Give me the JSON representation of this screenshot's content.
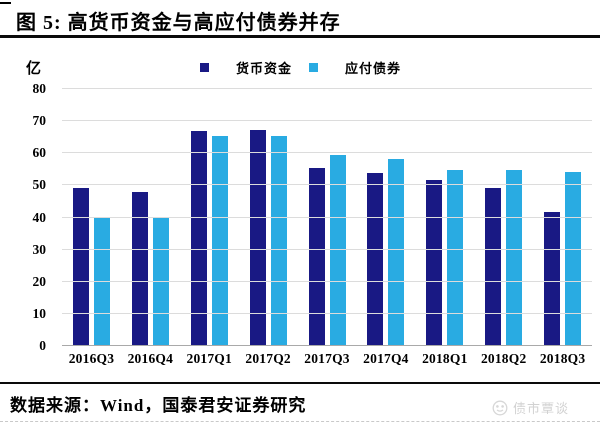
{
  "header": {
    "title": "图 5: 高货币资金与高应付债券并存"
  },
  "chart_data": {
    "type": "bar",
    "title": "高货币资金与高应付债券并存",
    "unit_label": "亿",
    "categories": [
      "2016Q3",
      "2016Q4",
      "2017Q1",
      "2017Q2",
      "2017Q3",
      "2017Q4",
      "2018Q1",
      "2018Q2",
      "2018Q3"
    ],
    "series": [
      {
        "name": "货币资金",
        "color": "#191984",
        "values": [
          49,
          47.5,
          66.5,
          67,
          55,
          53.5,
          51.5,
          49,
          41.5
        ]
      },
      {
        "name": "应付债券",
        "color": "#29ABE2",
        "values": [
          39.5,
          39.5,
          65,
          65,
          59,
          58,
          54.5,
          54.5,
          54
        ]
      }
    ],
    "ylim": [
      0,
      80
    ],
    "yticks": [
      0,
      10,
      20,
      30,
      40,
      50,
      60,
      70,
      80
    ],
    "grid": true,
    "legend_position": "top"
  },
  "footer": {
    "source": "数据来源：Wind，国泰君安证券研究",
    "watermark": "债市覃谈"
  },
  "colors": {
    "series1": "#191984",
    "series2": "#29ABE2",
    "gridline": "#dcdcdc",
    "axis": "#a9a9a9",
    "watermark": "#d2d2d2",
    "rule": "#0a0a0a"
  }
}
